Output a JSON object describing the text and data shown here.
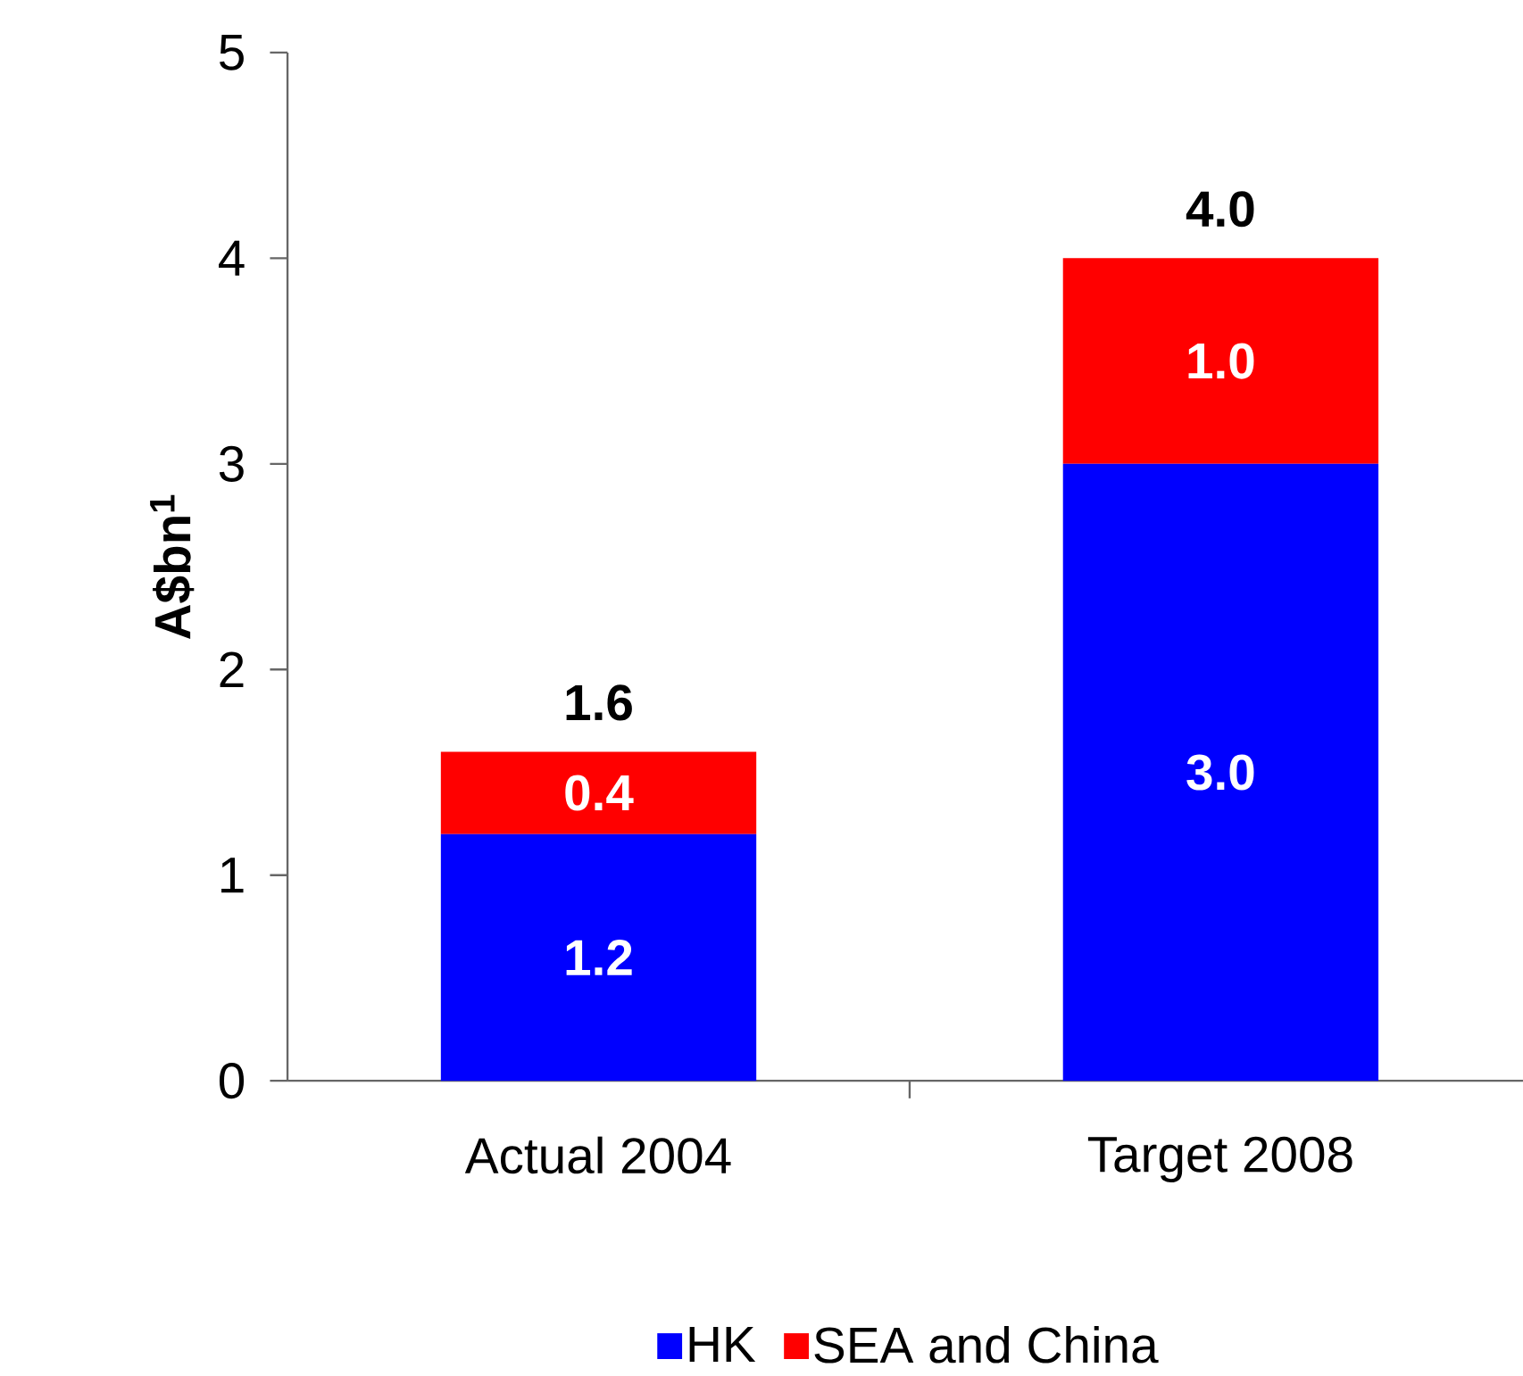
{
  "chart_data": {
    "type": "bar",
    "stacked": true,
    "ylabel": "A$bn$^{1}$",
    "categories": [
      "Actual 2004",
      "Target 2008"
    ],
    "series": [
      {
        "name": "HK",
        "color": "#0000ff",
        "values": [
          1.2,
          3.0
        ],
        "value_labels": [
          "1.2",
          "3.0"
        ]
      },
      {
        "name": "SEA and China",
        "color": "#ff0000",
        "values": [
          0.4,
          1.0
        ],
        "value_labels": [
          "0.4",
          "1.0"
        ]
      }
    ],
    "totals": [
      "1.6",
      "4.0"
    ],
    "ylim": [
      0,
      5
    ],
    "yticks": [
      0,
      1,
      2,
      3,
      4,
      5
    ],
    "legend": "bottom"
  }
}
